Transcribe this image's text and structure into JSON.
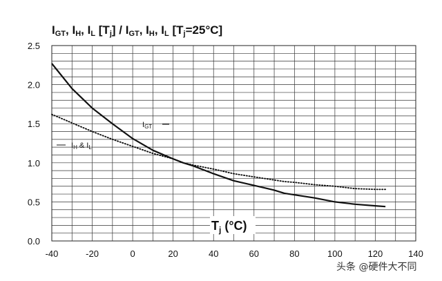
{
  "chart_data": {
    "type": "line",
    "title_parts": {
      "a": "I",
      "a_sub": "GT",
      "b": ", I",
      "b_sub": "H",
      "c": ", I",
      "c_sub": "L",
      "d": " [T",
      "d_sub": "j",
      "e": "] / I",
      "e_sub": "GT",
      "f": ", I",
      "f_sub": "H",
      "g": ", I",
      "g_sub": "L",
      "h": " [T",
      "h_sub": "j",
      "i": "=25°C]"
    },
    "xlabel": {
      "main": "T",
      "sub": "j",
      "rest": " (°C)"
    },
    "ylabel": "",
    "xlim": [
      -40,
      140
    ],
    "ylim": [
      0.0,
      2.5
    ],
    "x_ticks": [
      -40,
      -20,
      0,
      20,
      40,
      60,
      80,
      100,
      120,
      140
    ],
    "y_ticks": [
      0.0,
      0.5,
      1.0,
      1.5,
      2.0,
      2.5
    ],
    "y_tick_labels": [
      "0.0",
      "0.5",
      "1.0",
      "1.5",
      "2.0",
      "2.5"
    ],
    "grid": true,
    "series": [
      {
        "label_main": "I",
        "label_sub": "GT",
        "style": "solid",
        "x": [
          -40,
          -30,
          -20,
          -10,
          0,
          10,
          20,
          25,
          30,
          40,
          50,
          60,
          70,
          75,
          80,
          90,
          100,
          110,
          120,
          125
        ],
        "y": [
          2.27,
          1.95,
          1.7,
          1.5,
          1.31,
          1.16,
          1.05,
          1.0,
          0.96,
          0.86,
          0.77,
          0.71,
          0.65,
          0.61,
          0.59,
          0.55,
          0.5,
          0.47,
          0.45,
          0.44
        ]
      },
      {
        "label_main": "I",
        "label_sub": "H",
        "label_mid": " & I",
        "label_sub2": "L",
        "style": "dotted",
        "x": [
          -40,
          -30,
          -20,
          -10,
          0,
          10,
          20,
          25,
          30,
          40,
          50,
          60,
          70,
          75,
          80,
          90,
          100,
          110,
          120,
          125
        ],
        "y": [
          1.62,
          1.51,
          1.4,
          1.3,
          1.21,
          1.12,
          1.05,
          1.0,
          0.97,
          0.92,
          0.86,
          0.82,
          0.78,
          0.76,
          0.75,
          0.72,
          0.7,
          0.67,
          0.66,
          0.66
        ]
      }
    ]
  },
  "watermark": "头条 @硬件大不同"
}
